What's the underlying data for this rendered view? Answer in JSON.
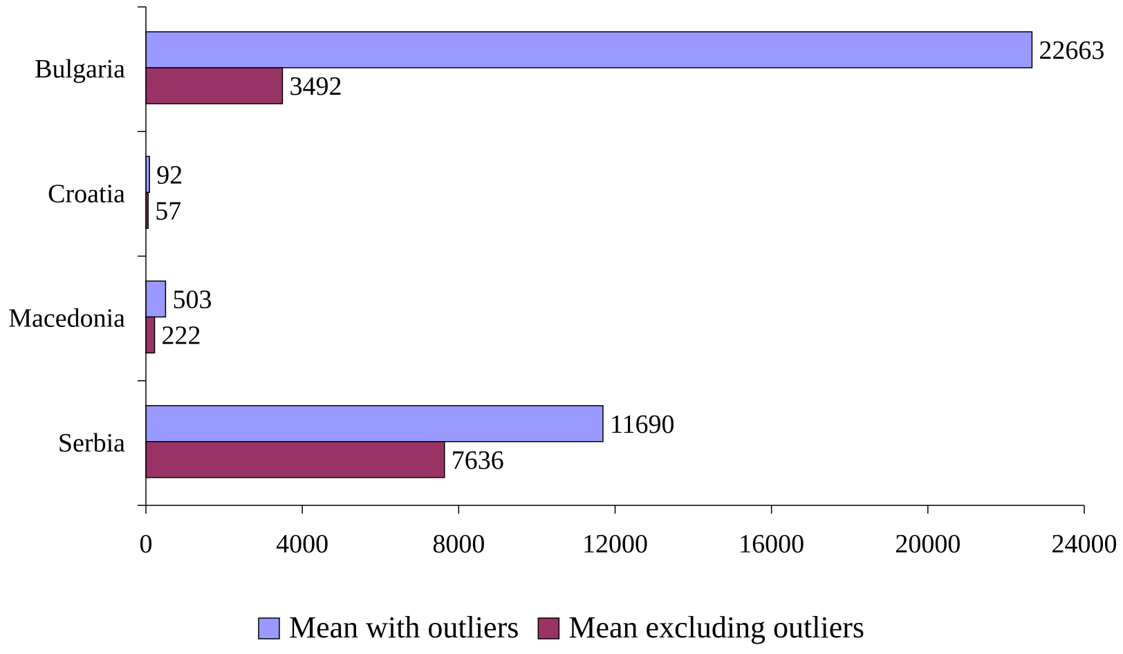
{
  "chart_data": {
    "type": "bar",
    "orientation": "horizontal",
    "categories": [
      "Bulgaria",
      "Croatia",
      "Macedonia",
      "Serbia"
    ],
    "series": [
      {
        "name": "Mean with outliers",
        "color": "#9999FF",
        "values": [
          22663,
          92,
          503,
          11690
        ],
        "labels": [
          "22663",
          "92",
          "503",
          "11690"
        ]
      },
      {
        "name": "Mean excluding outliers",
        "color": "#993366",
        "values": [
          3492,
          57,
          222,
          7636
        ],
        "labels": [
          "3492",
          "57",
          "222",
          "7636"
        ]
      }
    ],
    "x_ticks": [
      0,
      4000,
      8000,
      12000,
      16000,
      20000,
      24000
    ],
    "x_tick_labels": [
      "0",
      "4000",
      "8000",
      "12000",
      "16000",
      "20000",
      "24000"
    ],
    "xlim": [
      0,
      24000
    ],
    "grid": false,
    "legend_position": "bottom"
  }
}
